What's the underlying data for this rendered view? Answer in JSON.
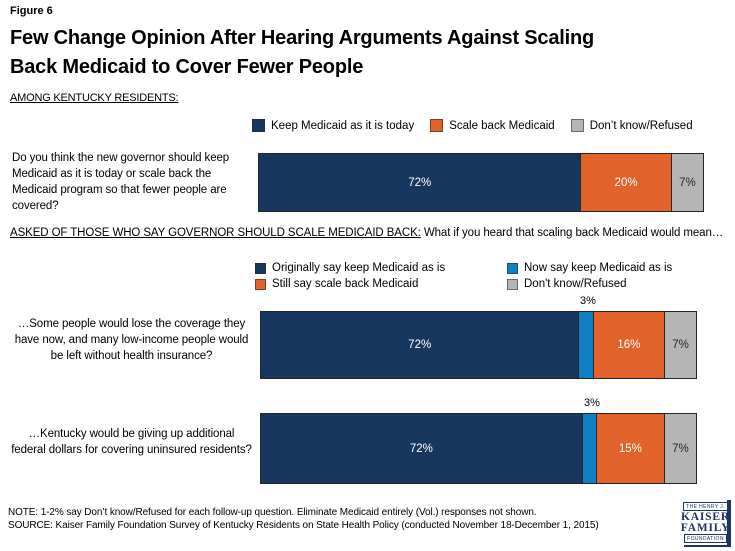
{
  "figure_label": "Figure 6",
  "title_lines": [
    "Few Change Opinion After Hearing Arguments Against Scaling",
    "Back Medicaid to Cover Fewer People"
  ],
  "among_label": "AMONG KENTUCKY RESIDENTS:",
  "colors": {
    "navy": "#17375E",
    "blue": "#1080C4",
    "orange": "#E2622B",
    "gray": "#B5B5B5",
    "logo_navy": "#1C3564"
  },
  "legend1": {
    "items": [
      {
        "label": "Keep Medicaid as it is today",
        "color": "#17375E"
      },
      {
        "label": "Scale back Medicaid",
        "color": "#E2622B"
      },
      {
        "label": "Don’t know/Refused",
        "color": "#B5B5B5"
      }
    ]
  },
  "q1": {
    "question": "Do you think the new governor should keep Medicaid as it is today or scale back the Medicaid program so that fewer people are covered?",
    "segments": [
      {
        "label": "72%",
        "value": 72,
        "color": "#17375E",
        "text_color": "#FFFFFF"
      },
      {
        "label": "20%",
        "value": 20,
        "color": "#E2622B",
        "text_color": "#FFFFFF"
      },
      {
        "label": "7%",
        "value": 7,
        "color": "#B5B5B5",
        "text_color": "#262626"
      }
    ]
  },
  "followup_heading": {
    "underlined": "ASKED OF THOSE WHO SAY GOVERNOR SHOULD SCALE MEDICAID BACK:",
    "rest": " What if you heard that scaling back Medicaid would mean…"
  },
  "legend2": {
    "items": [
      {
        "label": "Originally say keep Medicaid as is",
        "color": "#17375E"
      },
      {
        "label": "Now say keep Medicaid as is",
        "color": "#1080C4"
      },
      {
        "label": "Still say scale back Medicaid",
        "color": "#E2622B"
      },
      {
        "label": "Don't know/Refused",
        "color": "#B5B5B5"
      }
    ]
  },
  "q2": {
    "question": "…Some people would lose the coverage they have now, and many low-income people would be left without health insurance?",
    "callout": "3%",
    "segments": [
      {
        "label": "72%",
        "value": 72,
        "color": "#17375E",
        "text_color": "#FFFFFF"
      },
      {
        "label": "",
        "value": 3,
        "color": "#1080C4",
        "text_color": "#FFFFFF"
      },
      {
        "label": "16%",
        "value": 16,
        "color": "#E2622B",
        "text_color": "#FFFFFF"
      },
      {
        "label": "7%",
        "value": 7,
        "color": "#B5B5B5",
        "text_color": "#262626"
      }
    ]
  },
  "q3": {
    "question": "…Kentucky would be giving up additional federal dollars for covering uninsured residents?",
    "callout": "3%",
    "segments": [
      {
        "label": "72%",
        "value": 72,
        "color": "#17375E",
        "text_color": "#FFFFFF"
      },
      {
        "label": "",
        "value": 3,
        "color": "#1080C4",
        "text_color": "#FFFFFF"
      },
      {
        "label": "15%",
        "value": 15,
        "color": "#E2622B",
        "text_color": "#FFFFFF"
      },
      {
        "label": "7%",
        "value": 7,
        "color": "#B5B5B5",
        "text_color": "#262626"
      }
    ]
  },
  "note": "NOTE: 1-2% say Don’t know/Refused for each follow-up question. Eliminate Medicaid entirely (Vol.) responses not shown.",
  "source": "SOURCE: Kaiser Family Foundation Survey of Kentucky Residents on State Health Policy (conducted November 18-December 1, 2015)",
  "logo": {
    "line1": "THE HENRY J.",
    "line2": "KAISER",
    "line3": "FAMILY",
    "line4": "FOUNDATION"
  },
  "chart_data": {
    "type": "bar",
    "subtype": "horizontal-stacked",
    "unit": "percent",
    "title": "Few Change Opinion After Hearing Arguments Against Scaling Back Medicaid to Cover Fewer People",
    "population": "AMONG KENTUCKY RESIDENTS",
    "legend_position": "top",
    "grid": false,
    "bars": [
      {
        "question": "Do you think the new governor should keep Medicaid as it is today or scale back the Medicaid program so that fewer people are covered?",
        "series": [
          "Keep Medicaid as it is today",
          "Scale back Medicaid",
          "Don't know/Refused"
        ],
        "values": [
          72,
          20,
          7
        ]
      },
      {
        "question": "…Some people would lose the coverage they have now, and many low-income people would be left without health insurance?",
        "series": [
          "Originally say keep Medicaid as is",
          "Now say keep Medicaid as is",
          "Still say scale back Medicaid",
          "Don't know/Refused"
        ],
        "values": [
          72,
          3,
          16,
          7
        ]
      },
      {
        "question": "…Kentucky would be giving up additional federal dollars for covering uninsured residents?",
        "series": [
          "Originally say keep Medicaid as is",
          "Now say keep Medicaid as is",
          "Still say scale back Medicaid",
          "Don't know/Refused"
        ],
        "values": [
          72,
          3,
          15,
          7
        ]
      }
    ]
  }
}
